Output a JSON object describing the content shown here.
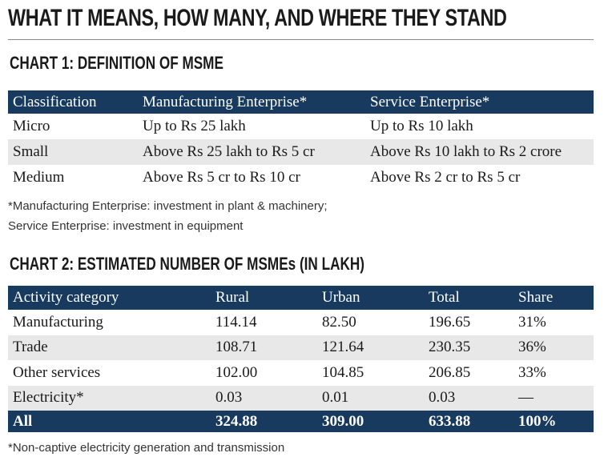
{
  "title": "WHAT IT MEANS, HOW MANY, AND WHERE THEY STAND",
  "chart1": {
    "title": "CHART 1: DEFINITION OF MSME",
    "headers": [
      "Classification",
      "Manufacturing Enterprise*",
      "Service Enterprise*"
    ],
    "rows": [
      [
        "Micro",
        "Up to Rs 25 lakh",
        "Up to Rs 10 lakh"
      ],
      [
        "Small",
        "Above Rs 25 lakh to Rs 5 cr",
        "Above Rs 10 lakh to Rs 2 crore"
      ],
      [
        "Medium",
        "Above Rs 5 cr to Rs 10 cr",
        "Above Rs 2 cr to Rs 5 cr"
      ]
    ],
    "note_line1": "*Manufacturing Enterprise: investment in plant & machinery;",
    "note_line2": "Service Enterprise: investment in equipment"
  },
  "chart2": {
    "title": "CHART 2: ESTIMATED NUMBER OF MSMEs (IN LAKH)",
    "headers": [
      "Activity category",
      "Rural",
      "Urban",
      "Total",
      "Share"
    ],
    "rows": [
      [
        "Manufacturing",
        "114.14",
        "82.50",
        "196.65",
        "31%"
      ],
      [
        "Trade",
        "108.71",
        "121.64",
        "230.35",
        "36%"
      ],
      [
        "Other services",
        "102.00",
        "104.85",
        "206.85",
        "33%"
      ],
      [
        "Electricity*",
        "0.03",
        "0.01",
        "0.03",
        "—"
      ]
    ],
    "total_row": [
      "All",
      "324.88",
      "309.00",
      "633.88",
      "100%"
    ],
    "note": "*Non-captive electricity generation and transmission"
  },
  "colors": {
    "header_bg": "#173a5e",
    "alt_row_bg": "#e8e8e8"
  }
}
